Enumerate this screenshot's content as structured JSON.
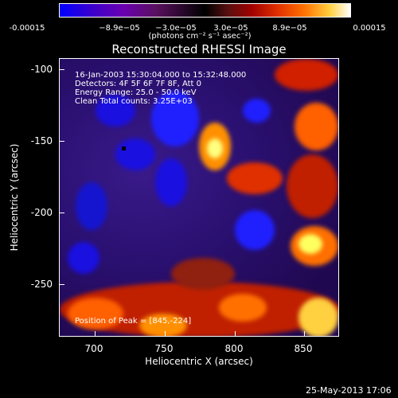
{
  "colorbar": {
    "ticks": [
      "-0.00015",
      "−8.9e−05",
      "−3.0e−05",
      "3.0e−05",
      "8.9e−05",
      "0.00015"
    ],
    "units": "(photons cm⁻² s⁻¹ asec⁻²)"
  },
  "title": "Reconstructed RHESSI Image",
  "info": {
    "time_range": "16-Jan-2003 15:30:04.000 to 15:32:48.000",
    "detectors": "Detectors: 4F 5F 6F 7F 8F, Att 0",
    "energy": "Energy Range: 25.0 - 50.0 keV",
    "clean": "Clean     Total counts: 3.25E+03",
    "peak": "Position of Peak = [845,-224]"
  },
  "axes": {
    "xlabel": "Heliocentric X (arcsec)",
    "ylabel": "Heliocentric Y (arcsec)",
    "xticks": [
      "700",
      "750",
      "800",
      "850"
    ],
    "yticks": [
      "-100",
      "-150",
      "-200",
      "-250"
    ]
  },
  "timestamp": "25-May-2013 17:06"
}
